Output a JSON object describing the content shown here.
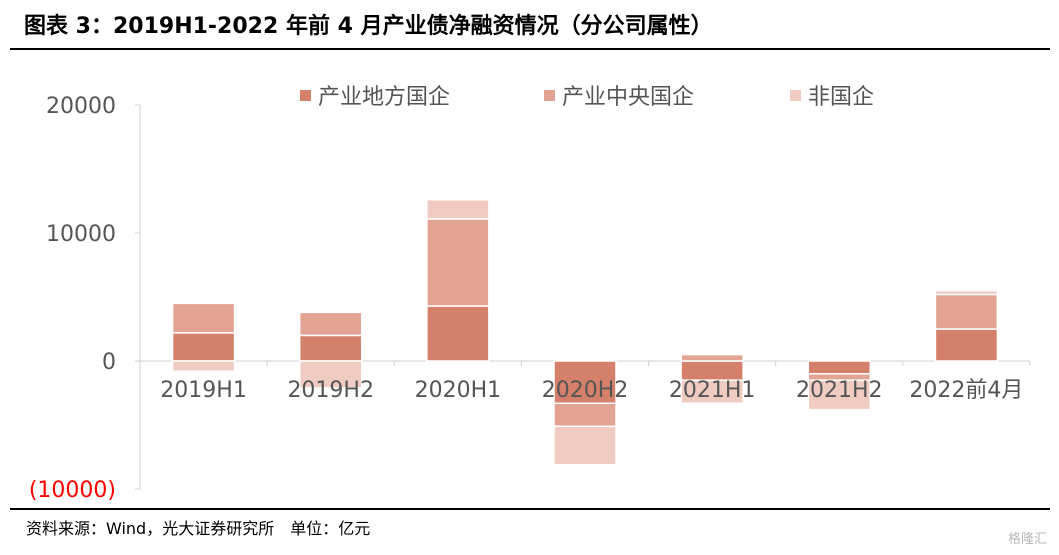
{
  "figure": {
    "title": "图表 3：2019H1-2022 年前 4 月产业债净融资情况（分公司属性）",
    "source": "资料来源：Wind，光大证券研究所　单位：亿元",
    "watermark": "格隆汇"
  },
  "chart_data": {
    "type": "bar",
    "stacked": true,
    "categories": [
      "2019H1",
      "2019H2",
      "2020H1",
      "2020H2",
      "2021H1",
      "2021H2",
      "2022前4月"
    ],
    "series": [
      {
        "name": "产业地方国企",
        "color": "#d4806a",
        "values": [
          2200,
          2000,
          4300,
          -3300,
          -1500,
          -1000,
          2500
        ]
      },
      {
        "name": "产业中央国企",
        "color": "#e2a393",
        "values": [
          2300,
          1800,
          6800,
          -1800,
          500,
          -500,
          2700
        ]
      },
      {
        "name": "非国企",
        "color": "#f0cbc2",
        "values": [
          -800,
          -2100,
          1500,
          -3000,
          -1800,
          -2300,
          300
        ]
      }
    ],
    "ylim": [
      -10000,
      20000
    ],
    "yticks": [
      20000,
      10000,
      0,
      -10000
    ],
    "ytick_labels": [
      "20000",
      "10000",
      "0",
      "(10000)"
    ],
    "negative_label_color": "#ff0000",
    "legend_position": "top",
    "grid": false
  }
}
